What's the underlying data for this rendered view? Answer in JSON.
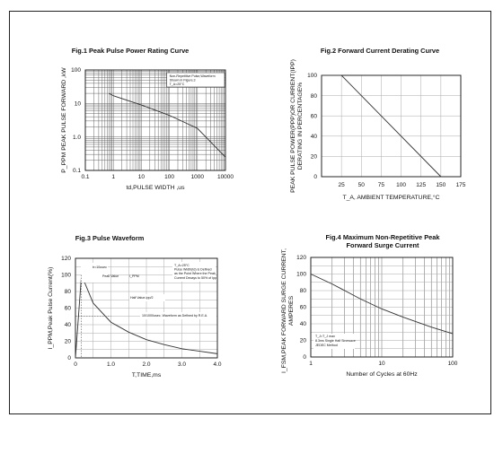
{
  "chart_data": [
    {
      "id": "fig1",
      "type": "line",
      "title": "Fig.1 Peak Pulse Power Rating Curve",
      "xlabel": "td,PULSE WIDTH ,us",
      "ylabel": "P_PPM PEAK PULSE FORWARD ,kW",
      "xscale": "log",
      "yscale": "log",
      "xlim": [
        0.1,
        10000
      ],
      "ylim": [
        0.1,
        100
      ],
      "xticks": [
        0.1,
        1,
        10,
        100,
        1000,
        10000
      ],
      "xtick_labels": [
        "0.1",
        "1",
        "10",
        "100",
        "1000",
        "10000"
      ],
      "yticks": [
        0.1,
        1,
        10,
        100
      ],
      "ytick_labels": [
        "0.1",
        "1.0",
        "10",
        "100"
      ],
      "grid": true,
      "annotation": [
        "Non-Repetitive Pulse,Waveform",
        "Shown in Figure.3",
        "T_A=25°C"
      ],
      "series": [
        {
          "x": [
            0.7,
            1,
            10,
            100,
            1000,
            10000
          ],
          "y": [
            20,
            17,
            9,
            4.4,
            1.8,
            0.25
          ]
        }
      ]
    },
    {
      "id": "fig2",
      "type": "line",
      "title": "Fig.2 Forward Current Derating Curve",
      "xlabel": "T_A, AMBIENT TEMPERATURE,°C",
      "ylabel": "PEAK PULSE POWER(PPP)OR CURRENT(IPP) DERATING IN PERCENTAGE%",
      "xlim": [
        0,
        175
      ],
      "ylim": [
        0,
        100
      ],
      "xticks": [
        25,
        50,
        75,
        100,
        125,
        150,
        175
      ],
      "yticks": [
        0,
        20,
        40,
        60,
        80,
        100
      ],
      "grid": true,
      "series": [
        {
          "x": [
            0,
            25,
            150
          ],
          "y": [
            100,
            100,
            0
          ]
        }
      ]
    },
    {
      "id": "fig3",
      "type": "line",
      "title": "Fig.3 Pulse Waveform",
      "xlabel": "T,TIME,ms",
      "ylabel": "I_PPM,Peak Pulse Current(%)",
      "xlim": [
        0,
        4.0
      ],
      "ylim": [
        0,
        120
      ],
      "xticks": [
        0,
        1.0,
        2.0,
        3.0,
        4.0
      ],
      "xtick_labels": [
        "0",
        "1.0",
        "2.0",
        "3.0",
        "4.0"
      ],
      "yticks": [
        0,
        20,
        40,
        60,
        80,
        100,
        120
      ],
      "grid": true,
      "annotations": {
        "tr": "tr=10usec",
        "peak": "Peak Value",
        "ipp": "I_PPM",
        "half": "Half Value-Ipp/2",
        "waveform": "10/1000usec. Waveform as Defined by R.E.A.",
        "cond": [
          "T_A=25°C",
          "Pulse Width(td) is Defined",
          "as the Point Where the Peak",
          "Current Decays to 50% of Ipp"
        ]
      },
      "series": [
        {
          "x": [
            0,
            0.17,
            0.5,
            1.0,
            1.5,
            2.0,
            2.5,
            3.0,
            3.5,
            4.0
          ],
          "y": [
            0,
            100,
            66,
            43,
            31,
            22,
            16,
            11,
            8,
            5
          ]
        }
      ]
    },
    {
      "id": "fig4",
      "type": "line",
      "title": "Fig.4 Maximum Non-Repetitive Peak Forward Surge Current",
      "xlabel": "Number of Cycles at 60Hz",
      "ylabel": "I_FSM,PEAK FORWARD SURGE CURRENT, AMPERES",
      "xscale": "log",
      "xlim": [
        1,
        100
      ],
      "ylim": [
        0,
        120
      ],
      "xticks": [
        1,
        10,
        100
      ],
      "xtick_labels": [
        "1",
        "10",
        "100"
      ],
      "yticks": [
        0,
        20,
        40,
        60,
        80,
        100,
        120
      ],
      "grid": true,
      "annotation": [
        "T_J=T_J max",
        "8.3ms Single Half Sinewave",
        "JEDEC Method"
      ],
      "series": [
        {
          "x": [
            1,
            2,
            5,
            10,
            20,
            50,
            100
          ],
          "y": [
            100,
            88,
            70,
            58,
            48,
            36,
            28
          ]
        }
      ]
    }
  ]
}
